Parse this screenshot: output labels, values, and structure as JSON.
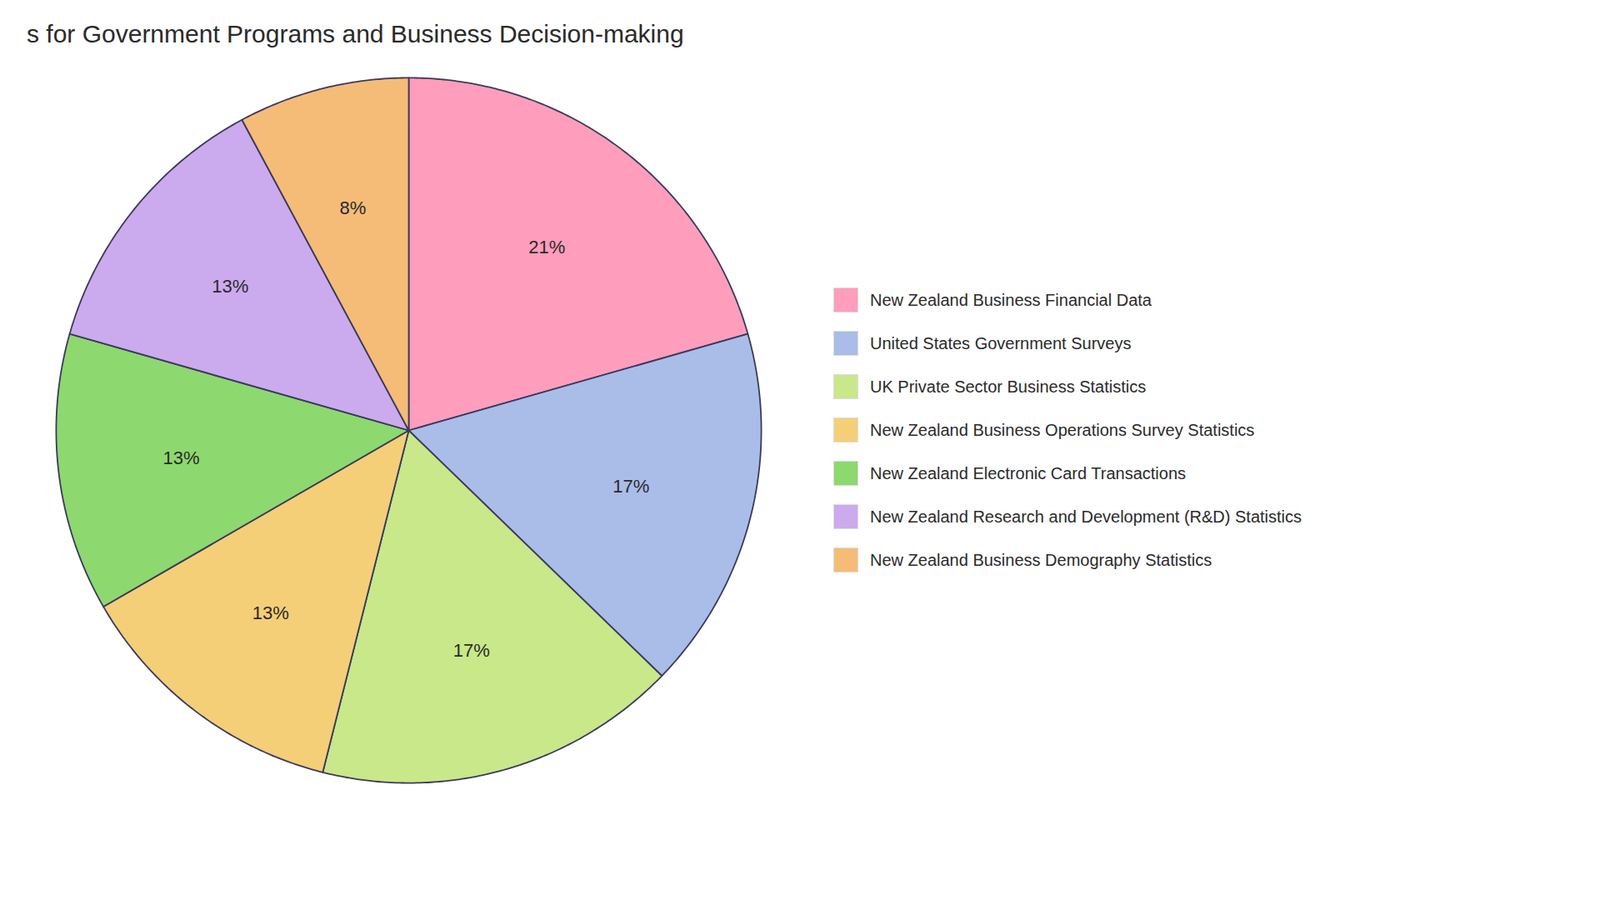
{
  "chart_data": {
    "type": "pie",
    "title": "s for Government Programs and Business Decision-making",
    "categories": [
      "New Zealand Business Financial Data",
      "United States Government Surveys",
      "UK Private Sector Business Statistics",
      "New Zealand Business Operations Survey Statistics",
      "New Zealand Electronic Card Transactions",
      "New Zealand Research and Development (R&D) Statistics",
      "New Zealand Business Demography Statistics"
    ],
    "values": [
      21,
      17,
      17,
      13,
      13,
      13,
      8
    ],
    "value_labels": [
      "21%",
      "17%",
      "17%",
      "13%",
      "13%",
      "13%",
      "8%"
    ],
    "colors": [
      "#FF9EBC",
      "#AABDE8",
      "#C8E88A",
      "#F5CE78",
      "#8ED870",
      "#CCAAEE",
      "#F5BC78"
    ],
    "data_labels": true,
    "legend": "right"
  }
}
